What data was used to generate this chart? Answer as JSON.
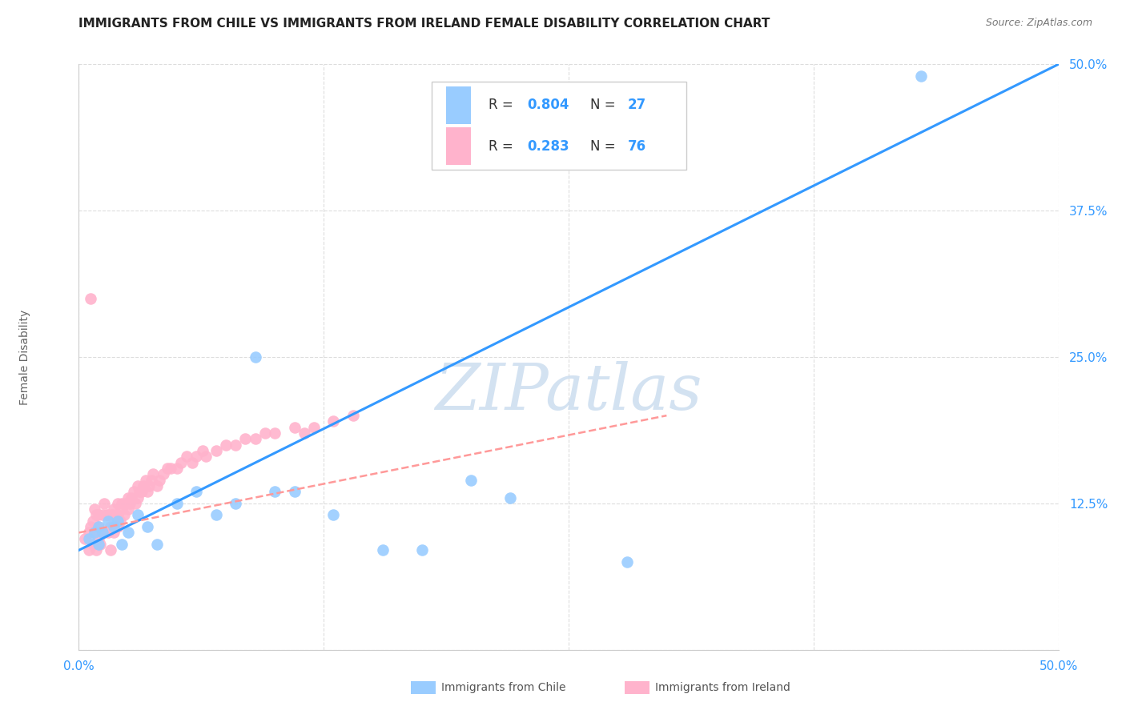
{
  "title": "IMMIGRANTS FROM CHILE VS IMMIGRANTS FROM IRELAND FEMALE DISABILITY CORRELATION CHART",
  "source": "Source: ZipAtlas.com",
  "ylabel": "Female Disability",
  "xlim": [
    0.0,
    0.5
  ],
  "ylim": [
    0.0,
    0.5
  ],
  "watermark": "ZIPatlas",
  "chile_color": "#99ccff",
  "ireland_color": "#ffb3cc",
  "chile_line_color": "#3399ff",
  "ireland_line_color": "#ff9999",
  "chile_R": "0.804",
  "chile_N": "27",
  "ireland_R": "0.283",
  "ireland_N": "76",
  "chile_scatter_x": [
    0.005,
    0.008,
    0.01,
    0.012,
    0.015,
    0.018,
    0.02,
    0.022,
    0.025,
    0.03,
    0.035,
    0.04,
    0.05,
    0.06,
    0.07,
    0.08,
    0.09,
    0.1,
    0.11,
    0.13,
    0.155,
    0.175,
    0.2,
    0.22,
    0.28,
    0.43,
    0.01
  ],
  "chile_scatter_y": [
    0.095,
    0.1,
    0.105,
    0.1,
    0.11,
    0.105,
    0.11,
    0.09,
    0.1,
    0.115,
    0.105,
    0.09,
    0.125,
    0.135,
    0.115,
    0.125,
    0.25,
    0.135,
    0.135,
    0.115,
    0.085,
    0.085,
    0.145,
    0.13,
    0.075,
    0.49,
    0.09
  ],
  "ireland_scatter_x": [
    0.003,
    0.005,
    0.006,
    0.007,
    0.008,
    0.008,
    0.009,
    0.01,
    0.01,
    0.01,
    0.012,
    0.012,
    0.013,
    0.013,
    0.014,
    0.015,
    0.015,
    0.016,
    0.017,
    0.018,
    0.018,
    0.019,
    0.02,
    0.02,
    0.02,
    0.021,
    0.022,
    0.022,
    0.023,
    0.024,
    0.025,
    0.025,
    0.026,
    0.027,
    0.028,
    0.029,
    0.03,
    0.03,
    0.031,
    0.032,
    0.033,
    0.034,
    0.035,
    0.036,
    0.037,
    0.038,
    0.04,
    0.041,
    0.043,
    0.045,
    0.047,
    0.05,
    0.052,
    0.055,
    0.058,
    0.06,
    0.063,
    0.065,
    0.07,
    0.075,
    0.08,
    0.085,
    0.09,
    0.095,
    0.1,
    0.11,
    0.115,
    0.12,
    0.13,
    0.14,
    0.005,
    0.007,
    0.009,
    0.011,
    0.016,
    0.006
  ],
  "ireland_scatter_y": [
    0.095,
    0.1,
    0.105,
    0.11,
    0.1,
    0.12,
    0.115,
    0.095,
    0.105,
    0.115,
    0.1,
    0.115,
    0.1,
    0.125,
    0.115,
    0.1,
    0.115,
    0.105,
    0.115,
    0.12,
    0.1,
    0.115,
    0.105,
    0.115,
    0.125,
    0.11,
    0.12,
    0.125,
    0.115,
    0.125,
    0.12,
    0.13,
    0.125,
    0.13,
    0.135,
    0.125,
    0.13,
    0.14,
    0.135,
    0.135,
    0.14,
    0.145,
    0.135,
    0.14,
    0.145,
    0.15,
    0.14,
    0.145,
    0.15,
    0.155,
    0.155,
    0.155,
    0.16,
    0.165,
    0.16,
    0.165,
    0.17,
    0.165,
    0.17,
    0.175,
    0.175,
    0.18,
    0.18,
    0.185,
    0.185,
    0.19,
    0.185,
    0.19,
    0.195,
    0.2,
    0.085,
    0.09,
    0.085,
    0.09,
    0.085,
    0.3
  ],
  "chile_trend_x": [
    0.0,
    0.5
  ],
  "chile_trend_y": [
    0.085,
    0.5
  ],
  "ireland_trend_x": [
    0.0,
    0.3
  ],
  "ireland_trend_y": [
    0.1,
    0.2
  ]
}
